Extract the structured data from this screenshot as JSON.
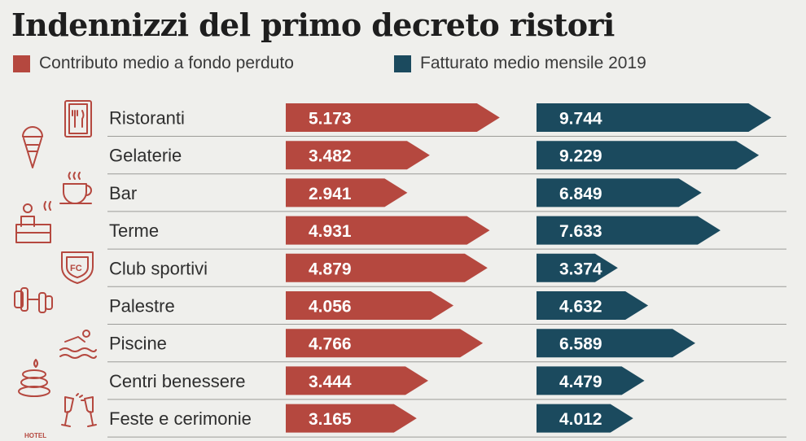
{
  "header": {
    "title": "Indennizzi del primo decreto ristori"
  },
  "legend": [
    {
      "label": "Contributo medio a fondo perduto",
      "color": "#b5483f"
    },
    {
      "label": "Fatturato medio mensile 2019",
      "color": "#1b4a5e"
    }
  ],
  "chart_data": {
    "type": "bar",
    "orientation": "horizontal",
    "title": "Indennizzi del primo decreto ristori",
    "categories": [
      "Ristoranti",
      "Gelaterie",
      "Bar",
      "Terme",
      "Club sportivi",
      "Palestre",
      "Piscine",
      "Centri benessere",
      "Feste e cerimonie"
    ],
    "series": [
      {
        "name": "Contributo medio a fondo perduto",
        "color": "#b5483f",
        "values": [
          5173,
          3482,
          2941,
          4931,
          4879,
          4056,
          4766,
          3444,
          3165
        ],
        "labels": [
          "5.173",
          "3.482",
          "2.941",
          "4.931",
          "4.879",
          "4.056",
          "4.766",
          "3.444",
          "3.165"
        ]
      },
      {
        "name": "Fatturato medio mensile 2019",
        "color": "#1b4a5e",
        "values": [
          9744,
          9229,
          6849,
          7633,
          3374,
          4632,
          6589,
          4479,
          4012
        ],
        "labels": [
          "9.744",
          "9.229",
          "6.849",
          "7.633",
          "3.374",
          "4.632",
          "6.589",
          "4.479",
          "4.012"
        ]
      }
    ],
    "grid": false,
    "legend_position": "top-left"
  },
  "icons": [
    {
      "name": "menu-icon"
    },
    {
      "name": "ice-cream-icon"
    },
    {
      "name": "coffee-cup-icon"
    },
    {
      "name": "thermal-bath-icon"
    },
    {
      "name": "football-club-badge-icon"
    },
    {
      "name": "dumbbell-icon"
    },
    {
      "name": "swimmer-icon"
    },
    {
      "name": "spa-stones-icon"
    },
    {
      "name": "champagne-toast-icon"
    },
    {
      "name": "hotel-icon",
      "text": "HOTEL"
    }
  ]
}
